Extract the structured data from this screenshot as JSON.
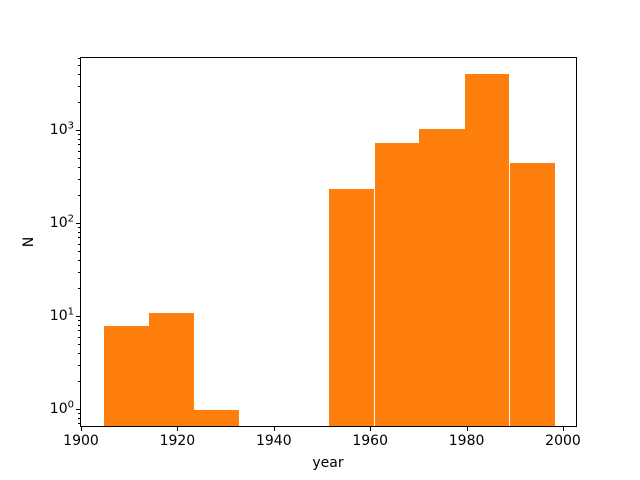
{
  "chart_data": {
    "type": "histogram",
    "title": "",
    "xlabel": "year",
    "ylabel": "N",
    "yscale": "log",
    "grid": false,
    "legend": false,
    "bar_color": "#ff7f0e",
    "axis_color": "#000000",
    "background_color": "#ffffff",
    "bin_edges": [
      1904.6,
      1913.9,
      1923.3,
      1932.6,
      1942.0,
      1951.3,
      1960.7,
      1970.0,
      1979.4,
      1988.7,
      1998.1
    ],
    "counts": [
      8,
      11,
      1,
      0,
      0,
      240,
      740,
      1050,
      4100,
      450
    ],
    "x_ticks": [
      1900,
      1920,
      1940,
      1960,
      1980,
      2000
    ],
    "y_tick_exponents": [
      0,
      1,
      2,
      3
    ],
    "xlim": [
      1899.8,
      2002.7
    ],
    "ylim": [
      0.655,
      6100
    ]
  }
}
